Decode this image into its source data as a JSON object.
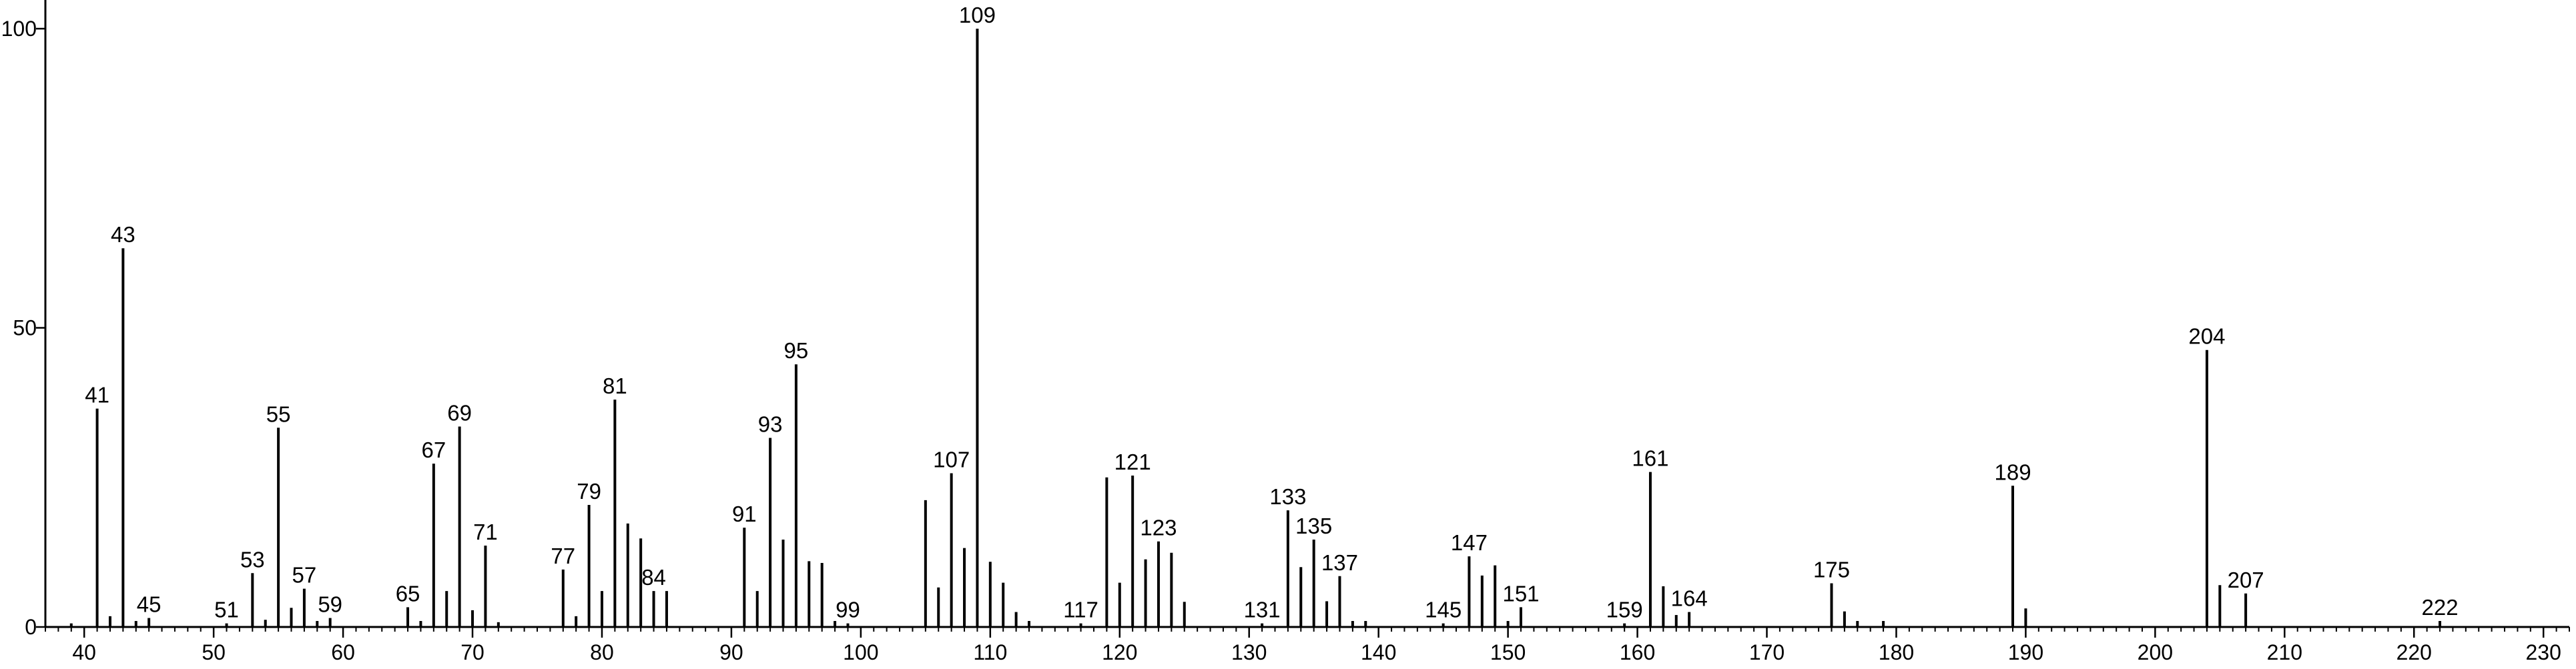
{
  "chart_data": {
    "type": "bar",
    "title": "",
    "xlabel": "",
    "ylabel": "",
    "xlim": [
      37,
      232
    ],
    "ylim": [
      0,
      100
    ],
    "x_ticks": [
      40,
      50,
      60,
      70,
      80,
      90,
      100,
      110,
      120,
      130,
      140,
      150,
      160,
      170,
      180,
      190,
      200,
      210,
      220,
      230
    ],
    "x_minor_step": 1,
    "y_ticks": [
      0,
      50,
      100
    ],
    "grid": false,
    "legend": "none",
    "colors": {
      "bar": "#000000",
      "axis": "#000000",
      "text": "#000000"
    },
    "peaks": [
      {
        "mz": 39,
        "intensity": 0.6
      },
      {
        "mz": 41,
        "intensity": 36.5,
        "label": "41"
      },
      {
        "mz": 42,
        "intensity": 1.8
      },
      {
        "mz": 43,
        "intensity": 63.3,
        "label": "43"
      },
      {
        "mz": 44,
        "intensity": 1.0
      },
      {
        "mz": 45,
        "intensity": 1.5,
        "label": "45"
      },
      {
        "mz": 51,
        "intensity": 0.6,
        "label": "51"
      },
      {
        "mz": 53,
        "intensity": 9.0,
        "label": "53"
      },
      {
        "mz": 54,
        "intensity": 1.2
      },
      {
        "mz": 55,
        "intensity": 33.3,
        "label": "55"
      },
      {
        "mz": 56,
        "intensity": 3.2
      },
      {
        "mz": 57,
        "intensity": 6.4,
        "label": "57"
      },
      {
        "mz": 58,
        "intensity": 1.0
      },
      {
        "mz": 59,
        "intensity": 1.5,
        "label": "59"
      },
      {
        "mz": 65,
        "intensity": 3.3,
        "label": "65"
      },
      {
        "mz": 66,
        "intensity": 1.0
      },
      {
        "mz": 67,
        "intensity": 27.3,
        "label": "67"
      },
      {
        "mz": 68,
        "intensity": 6.0
      },
      {
        "mz": 69,
        "intensity": 33.5,
        "label": "69"
      },
      {
        "mz": 70,
        "intensity": 2.8
      },
      {
        "mz": 71,
        "intensity": 13.6,
        "label": "71"
      },
      {
        "mz": 72,
        "intensity": 0.8
      },
      {
        "mz": 77,
        "intensity": 9.6,
        "label": "77"
      },
      {
        "mz": 78,
        "intensity": 1.8
      },
      {
        "mz": 79,
        "intensity": 20.4,
        "label": "79"
      },
      {
        "mz": 80,
        "intensity": 6.0
      },
      {
        "mz": 81,
        "intensity": 38.0,
        "label": "81"
      },
      {
        "mz": 82,
        "intensity": 17.3
      },
      {
        "mz": 83,
        "intensity": 14.8
      },
      {
        "mz": 84,
        "intensity": 6.0,
        "label": "84"
      },
      {
        "mz": 85,
        "intensity": 6.0
      },
      {
        "mz": 91,
        "intensity": 16.6,
        "label": "91"
      },
      {
        "mz": 92,
        "intensity": 6.0
      },
      {
        "mz": 93,
        "intensity": 31.6,
        "label": "93"
      },
      {
        "mz": 94,
        "intensity": 14.6
      },
      {
        "mz": 95,
        "intensity": 43.9,
        "label": "95"
      },
      {
        "mz": 96,
        "intensity": 11.0
      },
      {
        "mz": 97,
        "intensity": 10.7
      },
      {
        "mz": 98,
        "intensity": 1.0
      },
      {
        "mz": 99,
        "intensity": 0.6,
        "label": "99"
      },
      {
        "mz": 105,
        "intensity": 21.2
      },
      {
        "mz": 106,
        "intensity": 6.6
      },
      {
        "mz": 107,
        "intensity": 25.7,
        "label": "107"
      },
      {
        "mz": 108,
        "intensity": 13.2
      },
      {
        "mz": 109,
        "intensity": 100,
        "label": "109"
      },
      {
        "mz": 110,
        "intensity": 10.9
      },
      {
        "mz": 111,
        "intensity": 7.4
      },
      {
        "mz": 112,
        "intensity": 2.5
      },
      {
        "mz": 113,
        "intensity": 1.0
      },
      {
        "mz": 117,
        "intensity": 0.6,
        "label": "117"
      },
      {
        "mz": 119,
        "intensity": 25.0
      },
      {
        "mz": 120,
        "intensity": 7.4
      },
      {
        "mz": 121,
        "intensity": 25.3,
        "label": "121"
      },
      {
        "mz": 122,
        "intensity": 11.3
      },
      {
        "mz": 123,
        "intensity": 14.3,
        "label": "123"
      },
      {
        "mz": 124,
        "intensity": 12.4
      },
      {
        "mz": 125,
        "intensity": 4.2
      },
      {
        "mz": 131,
        "intensity": 0.6,
        "label": "131"
      },
      {
        "mz": 133,
        "intensity": 19.5,
        "label": "133"
      },
      {
        "mz": 134,
        "intensity": 10.0
      },
      {
        "mz": 135,
        "intensity": 14.6,
        "label": "135"
      },
      {
        "mz": 136,
        "intensity": 4.3
      },
      {
        "mz": 137,
        "intensity": 8.5,
        "label": "137"
      },
      {
        "mz": 138,
        "intensity": 1.0
      },
      {
        "mz": 139,
        "intensity": 1.0
      },
      {
        "mz": 145,
        "intensity": 0.6,
        "label": "145"
      },
      {
        "mz": 147,
        "intensity": 11.8,
        "label": "147"
      },
      {
        "mz": 148,
        "intensity": 8.6
      },
      {
        "mz": 149,
        "intensity": 10.3
      },
      {
        "mz": 150,
        "intensity": 1.0
      },
      {
        "mz": 151,
        "intensity": 3.3,
        "label": "151"
      },
      {
        "mz": 159,
        "intensity": 0.6,
        "label": "159"
      },
      {
        "mz": 161,
        "intensity": 25.9,
        "label": "161"
      },
      {
        "mz": 162,
        "intensity": 6.8
      },
      {
        "mz": 163,
        "intensity": 2.0
      },
      {
        "mz": 164,
        "intensity": 2.5,
        "label": "164"
      },
      {
        "mz": 175,
        "intensity": 7.3,
        "label": "175"
      },
      {
        "mz": 176,
        "intensity": 2.6
      },
      {
        "mz": 177,
        "intensity": 1.0
      },
      {
        "mz": 179,
        "intensity": 1.0
      },
      {
        "mz": 189,
        "intensity": 23.6,
        "label": "189"
      },
      {
        "mz": 190,
        "intensity": 3.1
      },
      {
        "mz": 204,
        "intensity": 46.3,
        "label": "204"
      },
      {
        "mz": 205,
        "intensity": 7.0
      },
      {
        "mz": 207,
        "intensity": 5.6,
        "label": "207"
      },
      {
        "mz": 222,
        "intensity": 1.0,
        "label": "222"
      }
    ]
  }
}
